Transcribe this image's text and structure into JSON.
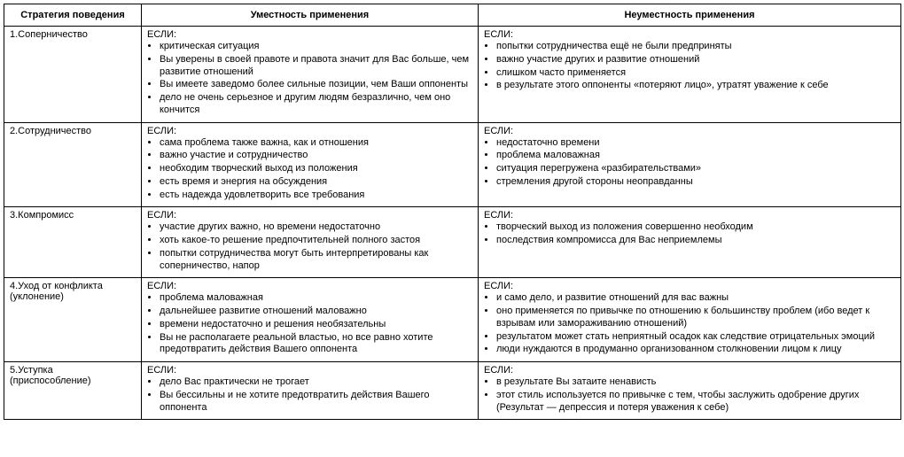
{
  "headers": {
    "strategy": "Стратегия поведения",
    "appropriate": "Уместность применения",
    "inappropriate": "Неуместность применения"
  },
  "lead": "ЕСЛИ:",
  "rows": [
    {
      "strategy": "1.Соперничество",
      "appropriate": [
        "критическая ситуация",
        "Вы уверены в своей правоте и правота значит для Вас больше, чем развитие отношений",
        "Вы имеете заведомо более сильные позиции, чем Ваши оппоненты",
        "дело не очень серьезное и другим людям безразлично, чем оно кончится"
      ],
      "inappropriate": [
        "попытки сотрудничества ещё не были предприняты",
        "важно участие других и развитие отношений",
        "слишком часто применяется",
        "в результате этого оппоненты «потеряют лицо», утратят уважение к себе"
      ]
    },
    {
      "strategy": "2.Сотрудничество",
      "appropriate": [
        "сама проблема также важна, как и отношения",
        "важно участие и сотрудничество",
        "необходим творческий выход из положения",
        "есть время и энергия на обсуждения",
        "есть надежда удовлетворить все требования"
      ],
      "inappropriate": [
        "недостаточно времени",
        "проблема маловажная",
        "ситуация перегружена «разбирательствами»",
        "стремления другой стороны неоправданны"
      ]
    },
    {
      "strategy": "3.Компромисс",
      "appropriate": [
        "участие других важно, но времени недостаточно",
        "хоть какое-то решение предпочтительней полного застоя",
        "попытки сотрудничества могут быть интерпретированы как соперничество, напор"
      ],
      "inappropriate": [
        "творческий выход из положения совершенно необходим",
        "последствия компромисса для Вас неприемлемы"
      ]
    },
    {
      "strategy": "4.Уход от конфликта (уклонение)",
      "appropriate": [
        "проблема маловажная",
        "дальнейшее развитие отношений маловажно",
        "времени недостаточно и решения необязательны",
        "Вы не располагаете реальной властью, но все равно хотите предотвратить действия Вашего оппонента"
      ],
      "inappropriate": [
        "и само дело, и развитие отношений для вас важны",
        "оно применяется по привычке по отношению к большинству проблем (ибо ведет к взрывам или замораживанию отношений)",
        "результатом может стать неприятный осадок как следствие отрицательных эмоций",
        "люди нуждаются в продуманно организованном столкновении лицом к лицу"
      ]
    },
    {
      "strategy": "5.Уступка (приспособление)",
      "appropriate": [
        "дело Вас практически не трогает",
        "Вы бессильны и не хотите предотвратить действия Вашего оппонента"
      ],
      "inappropriate": [
        "в результате Вы затаите ненависть",
        "этот стиль используется по привычке с тем, чтобы заслужить одобрение других (Результат — депрессия и потеря уважения к себе)"
      ]
    }
  ]
}
